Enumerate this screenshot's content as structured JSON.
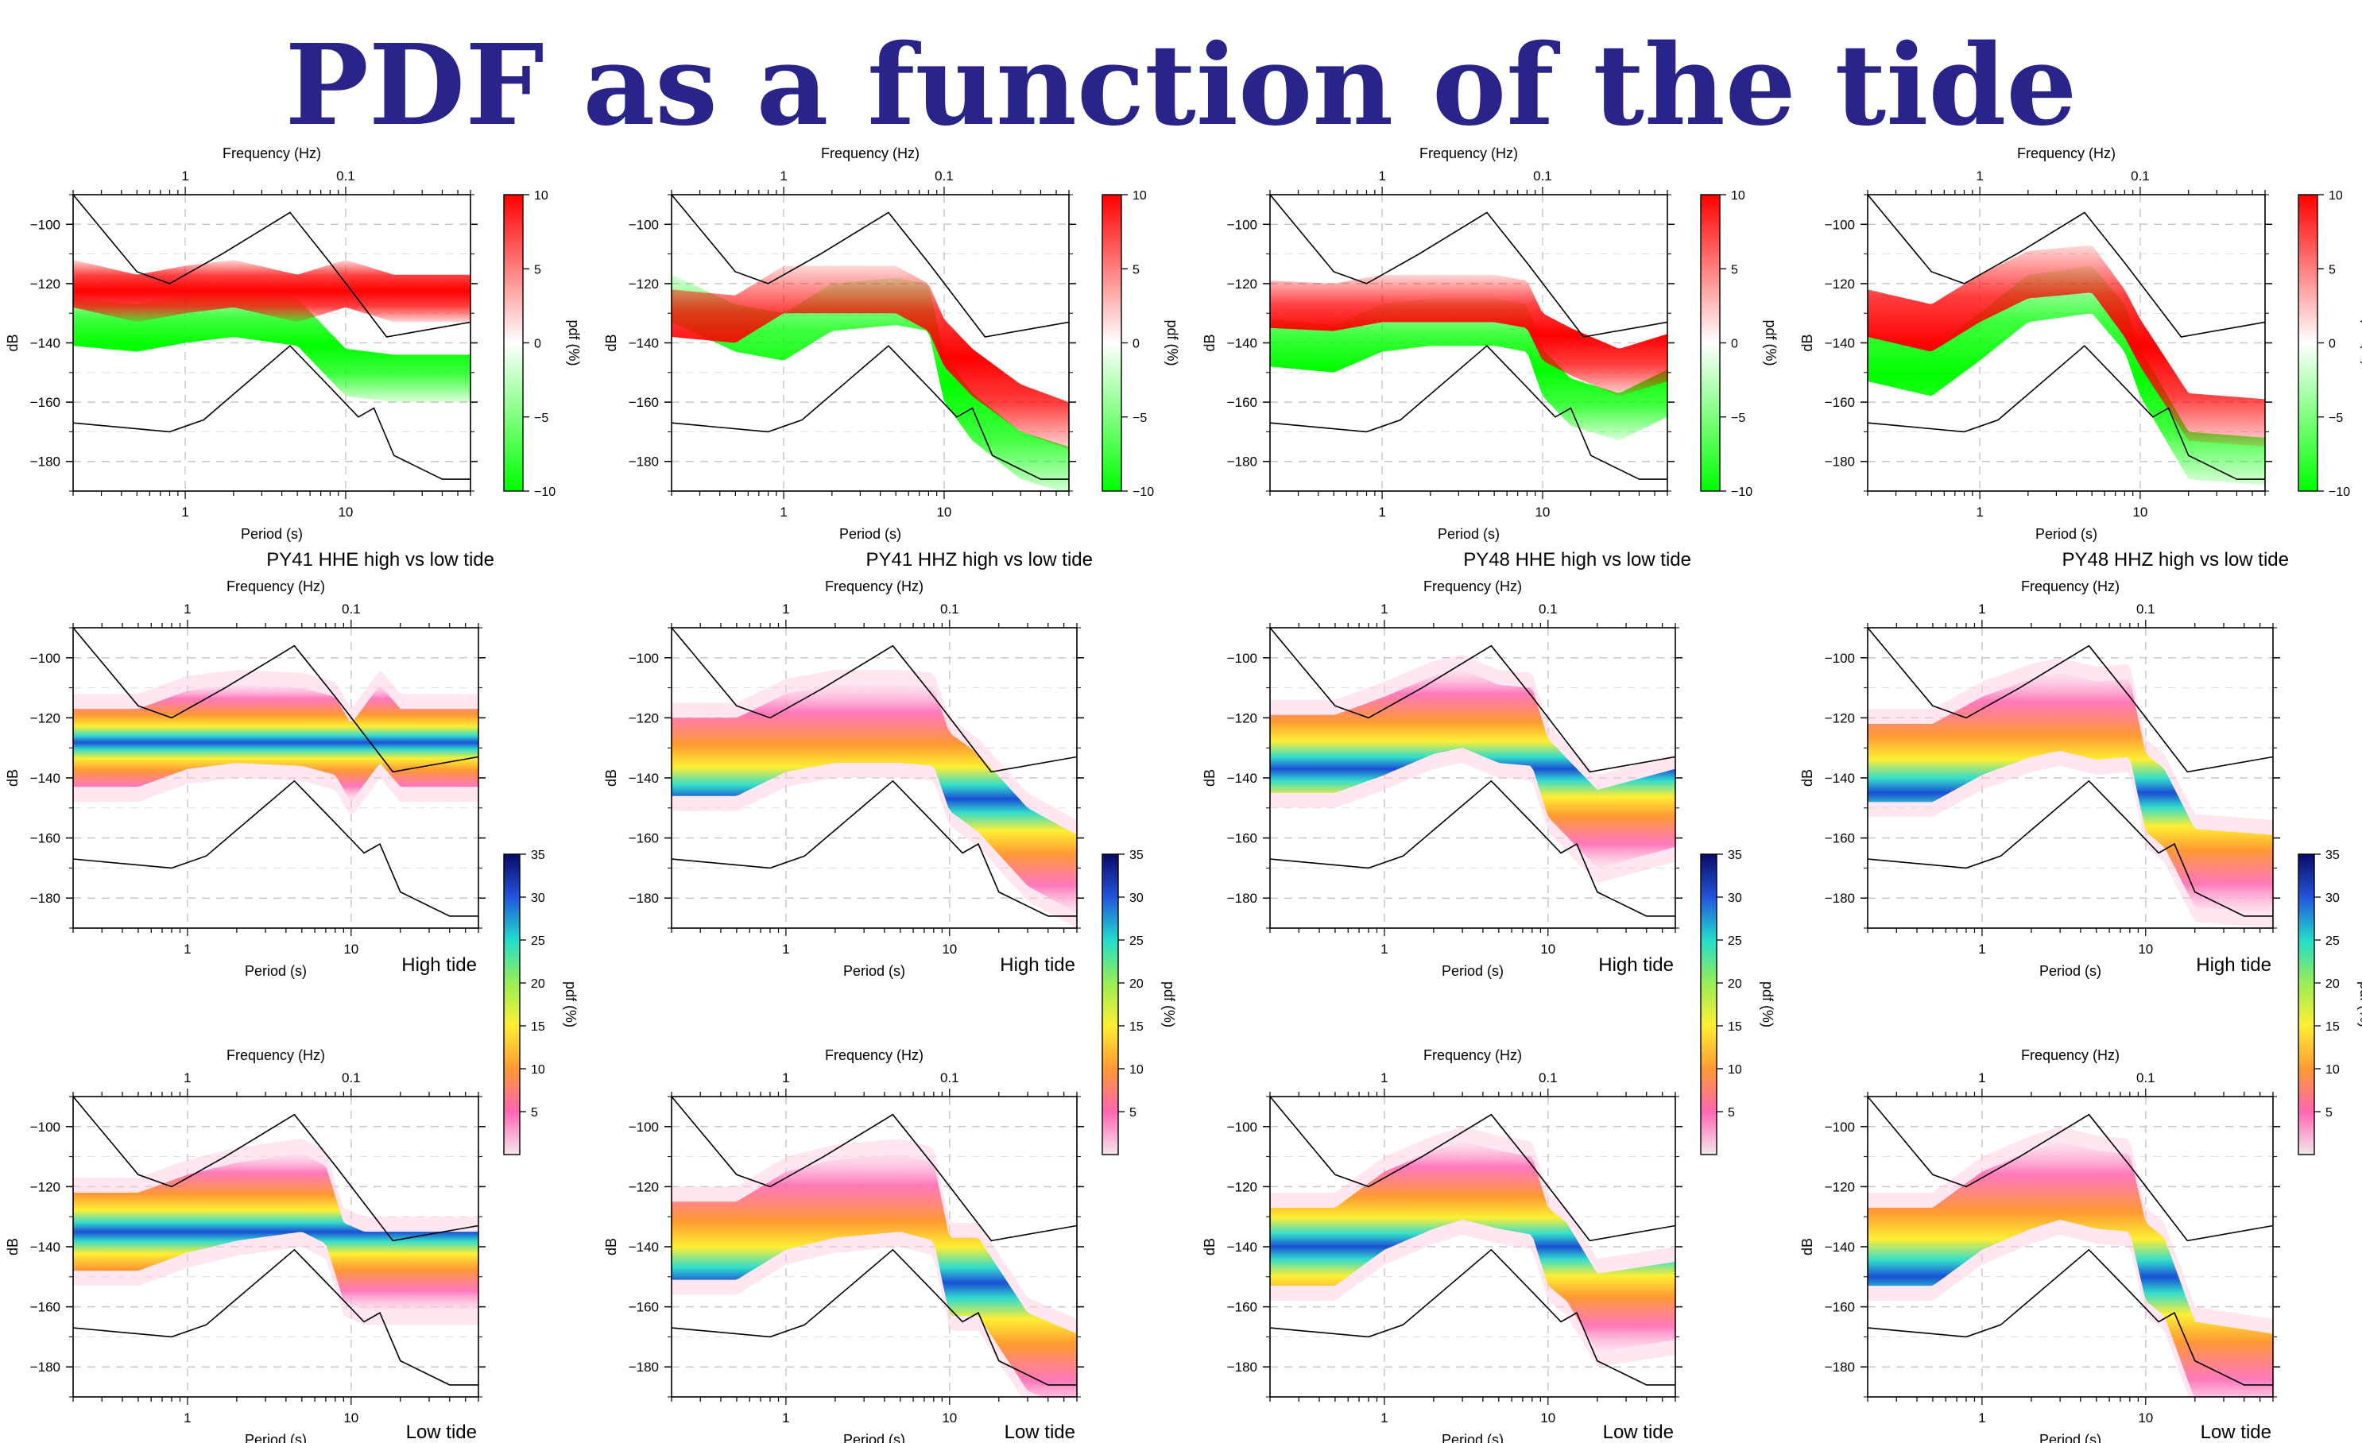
{
  "slide": {
    "title": "PDF as a function of the tide"
  },
  "labels": {
    "frequency_axis": "Frequency (Hz)",
    "period_axis": "Period (s)",
    "db_axis": "dB",
    "colorbar_label": "pdf (%)",
    "high_tide": "High tide",
    "low_tide": "Low tide"
  },
  "colors": {
    "title": "#2a2389",
    "diff_positive": "#ff0000",
    "diff_negative": "#00ff00",
    "noise_model": "#000000"
  },
  "colorscales": {
    "difference": {
      "range": [
        -10,
        10
      ],
      "ticks": [
        -10,
        -5,
        0,
        5,
        10
      ],
      "stops": [
        "#00ff00",
        "#ffffff",
        "#ff0000"
      ]
    },
    "pdf": {
      "range": [
        0,
        35
      ],
      "ticks": [
        5,
        10,
        15,
        20,
        25,
        30,
        35
      ],
      "stops": [
        "#f5e6ee",
        "#ff66b2",
        "#ff9933",
        "#ffee33",
        "#99ee55",
        "#22ddcc",
        "#2255dd",
        "#0a0a66"
      ]
    }
  },
  "chart_data": [
    {
      "type": "heatmap",
      "station": "PY41",
      "channel": "HHE",
      "caption": "PY41 HHE high vs low tide",
      "x_scale": "log",
      "xlim": [
        0.2,
        60
      ],
      "ylim": [
        -190,
        -90
      ],
      "y_ticks": [
        -180,
        -160,
        -140,
        -120,
        -100
      ],
      "x_ticks": [
        1,
        10
      ],
      "freq_ticks": [
        1,
        0.1
      ],
      "colorbar": "difference",
      "red_band_db": {
        "period_s": [
          0.2,
          0.5,
          1,
          2,
          5,
          10,
          20,
          60
        ],
        "db": [
          -120,
          -125,
          -122,
          -120,
          -125,
          -120,
          -125,
          -125
        ]
      },
      "green_band_db": {
        "period_s": [
          0.2,
          0.5,
          1,
          2,
          5,
          10,
          20,
          60
        ],
        "db": [
          -133,
          -135,
          -132,
          -130,
          -133,
          -150,
          -152,
          -152
        ]
      },
      "high": {
        "caption": "High tide",
        "mode_db": {
          "period_s": [
            0.5,
            1,
            2,
            5,
            8,
            10,
            15,
            20,
            60
          ],
          "db": [
            -130,
            -124,
            -122,
            -123,
            -126,
            -135,
            -122,
            -130,
            -130
          ]
        }
      },
      "low": {
        "caption": "Low tide",
        "mode_db": {
          "period_s": [
            0.5,
            1,
            2,
            5,
            7,
            9,
            12,
            20,
            60
          ],
          "db": [
            -135,
            -129,
            -125,
            -122,
            -126,
            -145,
            -148,
            -148,
            -148
          ]
        }
      }
    },
    {
      "type": "heatmap",
      "station": "PY41",
      "channel": "HHZ",
      "caption": "PY41 HHZ high vs low tide",
      "x_scale": "log",
      "xlim": [
        0.2,
        60
      ],
      "ylim": [
        -190,
        -90
      ],
      "y_ticks": [
        -180,
        -160,
        -140,
        -120,
        -100
      ],
      "x_ticks": [
        1,
        10
      ],
      "freq_ticks": [
        1,
        0.1
      ],
      "colorbar": "difference",
      "red_band_db": {
        "period_s": [
          0.2,
          0.5,
          1,
          2,
          5,
          8,
          10,
          15,
          30,
          60
        ],
        "db": [
          -130,
          -132,
          -122,
          -122,
          -122,
          -128,
          -140,
          -150,
          -162,
          -168
        ]
      },
      "green_band_db": {
        "period_s": [
          0.2,
          0.5,
          1,
          2,
          5,
          8,
          10,
          15,
          30,
          60
        ],
        "db": [
          -125,
          -135,
          -138,
          -128,
          -126,
          -128,
          -152,
          -165,
          -178,
          -183
        ]
      },
      "high": {
        "caption": "High tide",
        "mode_db": {
          "period_s": [
            0.5,
            1,
            2,
            5,
            8,
            10,
            15,
            30,
            60
          ],
          "db": [
            -133,
            -125,
            -122,
            -122,
            -123,
            -138,
            -145,
            -163,
            -172
          ]
        }
      },
      "low": {
        "caption": "Low tide",
        "mode_db": {
          "period_s": [
            0.5,
            1,
            2,
            5,
            8,
            10,
            15,
            30,
            60
          ],
          "db": [
            -138,
            -128,
            -124,
            -122,
            -125,
            -150,
            -150,
            -175,
            -182
          ]
        }
      }
    },
    {
      "type": "heatmap",
      "station": "PY48",
      "channel": "HHE",
      "caption": "PY48 HHE high vs low tide",
      "x_scale": "log",
      "xlim": [
        0.2,
        60
      ],
      "ylim": [
        -190,
        -90
      ],
      "y_ticks": [
        -180,
        -160,
        -140,
        -120,
        -100
      ],
      "x_ticks": [
        1,
        10
      ],
      "freq_ticks": [
        1,
        0.1
      ],
      "colorbar": "difference",
      "red_band_db": {
        "period_s": [
          0.2,
          0.5,
          1,
          2,
          5,
          8,
          10,
          15,
          30,
          60
        ],
        "db": [
          -127,
          -128,
          -125,
          -125,
          -125,
          -127,
          -138,
          -143,
          -150,
          -145
        ]
      },
      "green_band_db": {
        "period_s": [
          0.2,
          0.5,
          1,
          2,
          5,
          8,
          10,
          15,
          30,
          60
        ],
        "db": [
          -140,
          -142,
          -135,
          -133,
          -133,
          -135,
          -150,
          -160,
          -165,
          -157
        ]
      },
      "high": {
        "caption": "High tide",
        "mode_db": {
          "period_s": [
            0.5,
            1,
            2,
            3,
            5,
            8,
            10,
            20,
            60
          ],
          "db": [
            -132,
            -126,
            -119,
            -117,
            -122,
            -123,
            -140,
            -157,
            -150
          ]
        }
      },
      "low": {
        "caption": "Low tide",
        "mode_db": {
          "period_s": [
            0.5,
            1,
            2,
            3,
            5,
            8,
            10,
            13,
            20,
            60
          ],
          "db": [
            -140,
            -128,
            -121,
            -118,
            -121,
            -123,
            -140,
            -145,
            -162,
            -158
          ]
        }
      }
    },
    {
      "type": "heatmap",
      "station": "PY48",
      "channel": "HHZ",
      "caption": "PY48 HHZ high vs low tide",
      "x_scale": "log",
      "xlim": [
        0.2,
        60
      ],
      "ylim": [
        -190,
        -90
      ],
      "y_ticks": [
        -180,
        -160,
        -140,
        -120,
        -100
      ],
      "x_ticks": [
        1,
        10
      ],
      "freq_ticks": [
        1,
        0.1
      ],
      "colorbar": "difference",
      "red_band_db": {
        "period_s": [
          0.2,
          0.5,
          1,
          2,
          5,
          8,
          10,
          20,
          60
        ],
        "db": [
          -130,
          -135,
          -125,
          -117,
          -115,
          -130,
          -140,
          -165,
          -167
        ]
      },
      "green_band_db": {
        "period_s": [
          0.2,
          0.5,
          1,
          2,
          5,
          8,
          10,
          20,
          60
        ],
        "db": [
          -145,
          -150,
          -138,
          -125,
          -122,
          -135,
          -150,
          -178,
          -180
        ]
      },
      "high": {
        "caption": "High tide",
        "mode_db": {
          "period_s": [
            0.5,
            1,
            2,
            3,
            5,
            8,
            10,
            13,
            20,
            60
          ],
          "db": [
            -135,
            -126,
            -120,
            -118,
            -121,
            -120,
            -145,
            -150,
            -170,
            -172
          ]
        }
      },
      "low": {
        "caption": "Low tide",
        "mode_db": {
          "period_s": [
            0.5,
            1,
            2,
            3,
            5,
            8,
            10,
            13,
            20,
            60
          ],
          "db": [
            -140,
            -128,
            -121,
            -118,
            -121,
            -122,
            -145,
            -150,
            -178,
            -182
          ]
        }
      }
    }
  ],
  "noise_models": {
    "period_s": [
      0.2,
      0.5,
      0.8,
      1.7,
      4.5,
      8,
      18,
      60
    ],
    "nhnm_db": [
      -90,
      -116,
      -120,
      -110,
      -96,
      -113,
      -138,
      -133
    ],
    "nlnm_period_s": [
      0.2,
      0.8,
      1.3,
      4.5,
      8,
      12,
      15,
      20,
      40,
      60
    ],
    "nlnm_db": [
      -167,
      -170,
      -166,
      -141,
      -155,
      -165,
      -162,
      -178,
      -186,
      -186
    ]
  }
}
